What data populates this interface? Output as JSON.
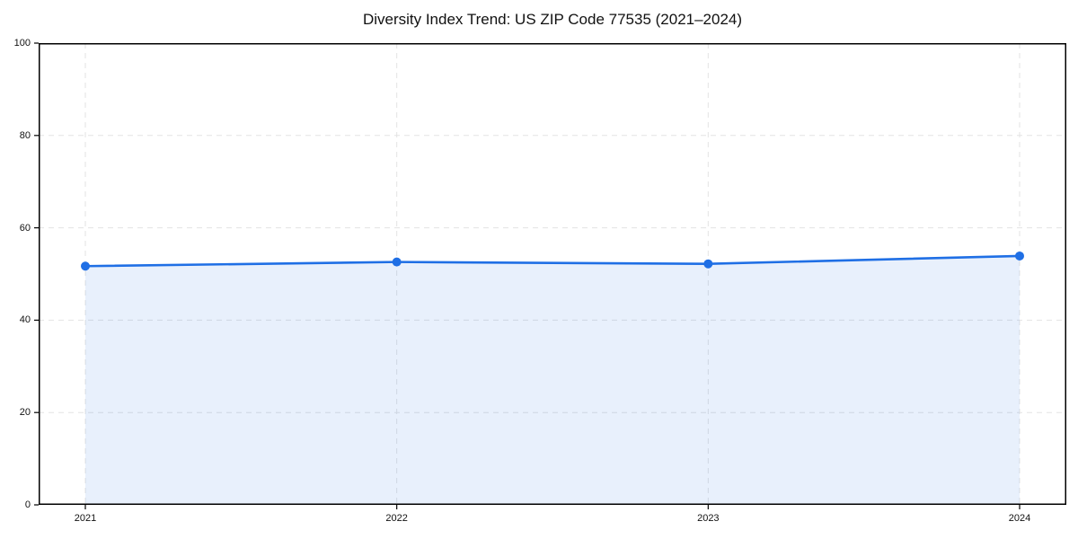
{
  "title": "Diversity Index Trend: US ZIP Code 77535 (2021–2024)",
  "chart_data": {
    "type": "area",
    "title": "Diversity Index Trend: US ZIP Code 77535 (2021–2024)",
    "categories": [
      "2021",
      "2022",
      "2023",
      "2024"
    ],
    "x": [
      2021,
      2022,
      2023,
      2024
    ],
    "series": [
      {
        "name": "Diversity Index",
        "values": [
          51.7,
          52.6,
          52.2,
          53.9
        ]
      }
    ],
    "xlabel": "",
    "ylabel": "",
    "ylim": [
      0,
      100
    ],
    "yticks": [
      0,
      20,
      40,
      60,
      80,
      100
    ],
    "grid": true,
    "grid_style": "dashed",
    "legend": false,
    "marker": "circle",
    "colors": {
      "line": "#1f6fe5",
      "marker": "#1f6fe5",
      "fill": "#1f6ee6",
      "fill_opacity": 0.1,
      "grid": "#e3e3e3",
      "spine": "#000000",
      "tick_text": "#111111",
      "title_text": "#111111",
      "background": "#ffffff"
    }
  }
}
